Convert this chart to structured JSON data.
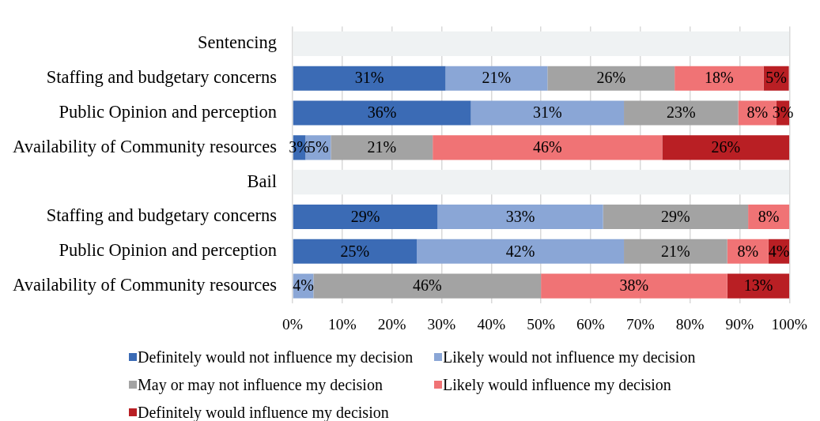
{
  "chart_data": {
    "type": "bar",
    "orientation": "horizontal",
    "stacked": true,
    "categories": [
      "Sentencing",
      "Staffing and budgetary concerns",
      "Public Opinion and perception",
      "Availability of Community resources",
      "Bail",
      "Staffing and budgetary concerns",
      "Public Opinion and perception",
      "Availability of Community resources"
    ],
    "series": [
      {
        "name": "Definitely would not influence my decision",
        "color": "#3b6bb5",
        "values": [
          null,
          30.8,
          35.9,
          2.6,
          null,
          29.2,
          25.0,
          null
        ],
        "value_labels": [
          null,
          "31%",
          "36%",
          "3%",
          null,
          "29%",
          "25%",
          null
        ]
      },
      {
        "name": "Likely would not influence my decision",
        "color": "#8aa6d6",
        "values": [
          null,
          20.5,
          30.8,
          5.1,
          null,
          33.3,
          41.7,
          4.2
        ],
        "value_labels": [
          null,
          "21%",
          "31%",
          "5%",
          null,
          "33%",
          "42%",
          "4%"
        ]
      },
      {
        "name": "May or may not influence my decision",
        "color": "#a3a3a3",
        "values": [
          null,
          25.6,
          23.0,
          20.5,
          null,
          29.2,
          20.8,
          45.8
        ],
        "value_labels": [
          null,
          "26%",
          "23%",
          "21%",
          null,
          "29%",
          "21%",
          "46%"
        ]
      },
      {
        "name": "Likely would influence my decision",
        "color": "#f07375",
        "values": [
          null,
          17.9,
          7.7,
          46.2,
          null,
          8.3,
          8.3,
          37.5
        ],
        "value_labels": [
          null,
          "18%",
          "8%",
          "46%",
          null,
          "8%",
          "8%",
          "38%"
        ]
      },
      {
        "name": "Definitely would influence my decision",
        "color": "#b91f24",
        "values": [
          null,
          5.1,
          2.6,
          25.6,
          null,
          null,
          4.2,
          12.5
        ],
        "value_labels": [
          null,
          "5%",
          "3%",
          "26%",
          null,
          null,
          "4%",
          "13%"
        ]
      },
      {
        "color": "#eff2f3",
        "values": [
          100,
          null,
          null,
          null,
          100,
          null,
          null,
          null
        ]
      }
    ],
    "xlim": [
      0,
      100
    ],
    "xticks": [
      {
        "value": 0,
        "label": "0%"
      },
      {
        "value": 10,
        "label": "10%"
      },
      {
        "value": 20,
        "label": "20%"
      },
      {
        "value": 30,
        "label": "30%"
      },
      {
        "value": 40,
        "label": "40%"
      },
      {
        "value": 50,
        "label": "50%"
      },
      {
        "value": 60,
        "label": "60%"
      },
      {
        "value": 70,
        "label": "70%"
      },
      {
        "value": 80,
        "label": "80%"
      },
      {
        "value": 90,
        "label": "90%"
      },
      {
        "value": 100,
        "label": "100%"
      }
    ],
    "grid": "x",
    "legend": "bottom"
  }
}
